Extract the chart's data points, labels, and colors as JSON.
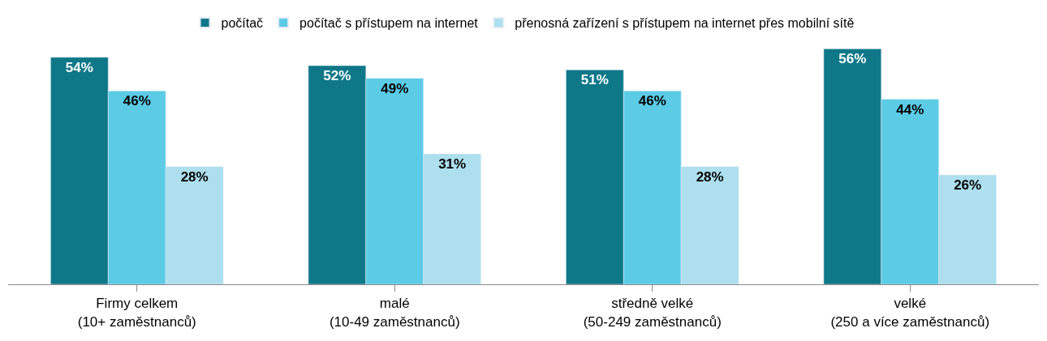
{
  "chart_data": {
    "type": "bar",
    "categories": [
      "Firmy celkem\n(10+ zaměstnanců)",
      "malé\n(10-49 zaměstnanců)",
      "středně velké\n(50-249 zaměstnanců)",
      "velké\n(250 a více zaměstnanců)"
    ],
    "series": [
      {
        "name": "počítač",
        "color": "#0f7888",
        "values": [
          54,
          52,
          51,
          56
        ],
        "value_labels": [
          "54%",
          "52%",
          "51%",
          "56%"
        ]
      },
      {
        "name": "počítač s přístupem na internet",
        "color": "#5ccbe6",
        "values": [
          46,
          49,
          46,
          44
        ],
        "value_labels": [
          "46%",
          "49%",
          "46%",
          "44%"
        ]
      },
      {
        "name": "přenosná zařízení s přístupem na internet přes mobilní sítě",
        "color": "#addfee",
        "values": [
          28,
          31,
          28,
          26
        ],
        "value_labels": [
          "28%",
          "31%",
          "28%",
          "26%"
        ]
      }
    ],
    "tick_labels": "x",
    "legend": "top"
  }
}
